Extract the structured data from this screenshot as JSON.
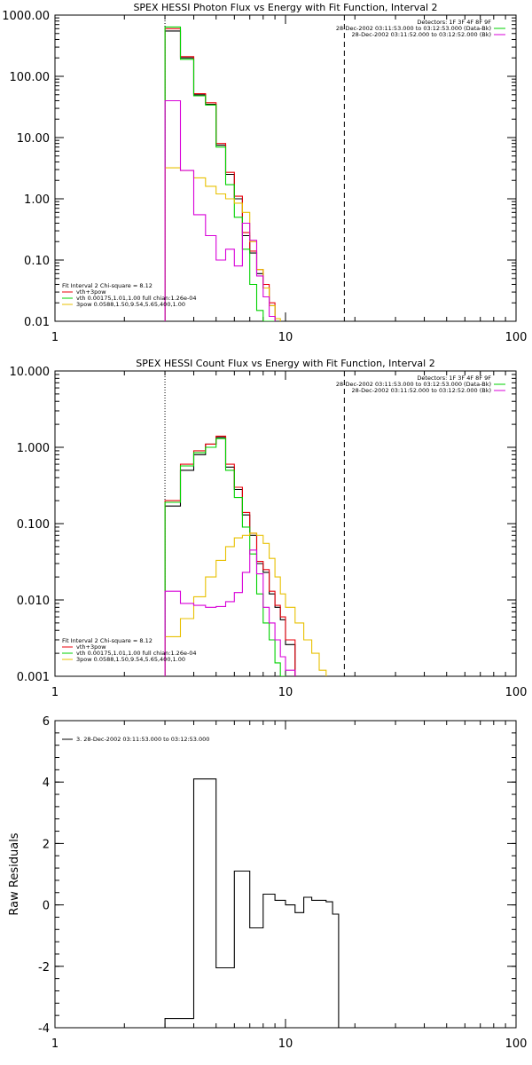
{
  "chart_data": [
    {
      "type": "line",
      "title": "SPEX HESSI Photon Flux vs Energy with Fit Function, Interval 2",
      "x_scale": "log",
      "y_scale": "log",
      "xlim": [
        1,
        100
      ],
      "ylim": [
        0.01,
        1000
      ],
      "x_ticks": [
        1,
        10,
        100
      ],
      "x_tick_labels": [
        "1",
        "10",
        "100"
      ],
      "y_ticks": [
        0.01,
        0.1,
        1,
        10,
        100,
        1000
      ],
      "y_tick_labels": [
        "0.01",
        "0.10",
        "1.00",
        "10.00",
        "100.00",
        "1000.00"
      ],
      "vlines": [
        {
          "x": 3.0,
          "style": "dotted"
        },
        {
          "x": 18.0,
          "style": "dashed"
        }
      ],
      "info_lines": [
        "Detectors: 1F 3F 4F 8F 9F",
        "28-Dec-2002 03:11:53.000 to 03:12:53.000 (Data-Bk)",
        "28-Dec-2002 03:11:52.000 to 03:12:52.000 (Bk)"
      ],
      "legend_title": "Fit Interval  2    Chi-square = 8.12",
      "legend": [
        {
          "label": "vth+3pow",
          "color": "#e8000b"
        },
        {
          "label": "vth 0.00175,1.01,1.00   full chian:1.26e-04",
          "color": "#00d200"
        },
        {
          "label": "3pow 0.0588,1.50,9.54,5.65,400,1.00",
          "color": "#e8c000"
        }
      ],
      "edges": [
        3.0,
        3.5,
        4.0,
        4.5,
        5.0,
        5.5,
        6.0,
        6.5,
        7.0,
        7.5,
        8.0,
        8.5,
        9.0,
        9.5,
        10.0,
        11.0,
        12.0,
        13.0,
        14.0,
        15.0,
        16.0,
        18.0,
        20.0,
        22.0
      ],
      "series": [
        {
          "key": "data",
          "color": "#000000",
          "values": [
            550,
            200,
            50,
            35,
            7.5,
            2.5,
            1.0,
            0.25,
            0.13,
            0.06,
            0.035,
            0.018
          ]
        },
        {
          "key": "model",
          "color": "#e8000b",
          "values": [
            600,
            210,
            52,
            37,
            8.0,
            2.7,
            1.1,
            0.28,
            0.14,
            0.07,
            0.04,
            0.02
          ]
        },
        {
          "key": "vth",
          "color": "#00d200",
          "values": [
            640,
            190,
            48,
            34,
            7.0,
            1.7,
            0.5,
            0.15,
            0.04,
            0.015,
            0.008,
            0.005
          ]
        },
        {
          "key": "3pow",
          "color": "#e8c000",
          "values": [
            3.2,
            2.9,
            2.2,
            1.6,
            1.2,
            1.0,
            0.85,
            0.6,
            0.2,
            0.07,
            0.035,
            0.018,
            0.011
          ]
        },
        {
          "key": "bk",
          "color": "#d800d8",
          "values": [
            40,
            2.9,
            0.55,
            0.25,
            0.1,
            0.15,
            0.08,
            0.4,
            0.21,
            0.055,
            0.025,
            0.012
          ]
        }
      ]
    },
    {
      "type": "line",
      "title": "SPEX HESSI Count Flux vs Energy with Fit Function, Interval 2",
      "x_scale": "log",
      "y_scale": "log",
      "xlim": [
        1,
        100
      ],
      "ylim": [
        0.001,
        10
      ],
      "x_ticks": [
        1,
        10,
        100
      ],
      "x_tick_labels": [
        "1",
        "10",
        "100"
      ],
      "y_ticks": [
        0.001,
        0.01,
        0.1,
        1,
        10
      ],
      "y_tick_labels": [
        "0.001",
        "0.010",
        "0.100",
        "1.000",
        "10.000"
      ],
      "vlines": [
        {
          "x": 3.0,
          "style": "dotted"
        },
        {
          "x": 18.0,
          "style": "dashed"
        }
      ],
      "info_lines": [
        "Detectors: 1F 3F 4F 8F 9F",
        "28-Dec-2002 03:11:53.000 to 03:12:53.000 (Data-Bk)",
        "28-Dec-2002 03:11:52.000 to 03:12:52.000 (Bk)"
      ],
      "legend_title": "Fit Interval  2    Chi-square = 8.12",
      "legend": [
        {
          "label": "vth+3pow",
          "color": "#e8000b"
        },
        {
          "label": "vth 0.00175,1.01,1.00   full chian:1.26e-04",
          "color": "#00d200"
        },
        {
          "label": "3pow 0.0588,1.50,9.54,5.65,400,1.00",
          "color": "#e8c000"
        }
      ],
      "edges": [
        3.0,
        3.5,
        4.0,
        4.5,
        5.0,
        5.5,
        6.0,
        6.5,
        7.0,
        7.5,
        8.0,
        8.5,
        9.0,
        9.5,
        10.0,
        11.0,
        12.0,
        13.0,
        14.0,
        15.0,
        16.0,
        18.0,
        20.0,
        22.0
      ],
      "series": [
        {
          "key": "data",
          "color": "#000000",
          "values": [
            0.17,
            0.5,
            0.8,
            1.1,
            1.35,
            0.55,
            0.28,
            0.13,
            0.07,
            0.03,
            0.023,
            0.012,
            0.008,
            0.0055,
            0.0026
          ]
        },
        {
          "key": "model",
          "color": "#e8000b",
          "values": [
            0.2,
            0.6,
            0.9,
            1.1,
            1.4,
            0.6,
            0.3,
            0.14,
            0.075,
            0.032,
            0.025,
            0.013,
            0.0085,
            0.006,
            0.003
          ]
        },
        {
          "key": "vth",
          "color": "#00d200",
          "values": [
            0.19,
            0.57,
            0.85,
            1.0,
            1.3,
            0.5,
            0.22,
            0.09,
            0.04,
            0.012,
            0.005,
            0.003,
            0.0015,
            0.0008
          ]
        },
        {
          "key": "3pow",
          "color": "#e8c000",
          "values": [
            0.0033,
            0.0057,
            0.011,
            0.02,
            0.033,
            0.05,
            0.065,
            0.07,
            0.075,
            0.07,
            0.055,
            0.035,
            0.02,
            0.012,
            0.008,
            0.005,
            0.003,
            0.002,
            0.0012
          ]
        },
        {
          "key": "bk",
          "color": "#d800d8",
          "values": [
            0.013,
            0.009,
            0.0085,
            0.008,
            0.0082,
            0.0095,
            0.0125,
            0.023,
            0.045,
            0.022,
            0.008,
            0.005,
            0.003,
            0.0018,
            0.0012
          ]
        }
      ]
    },
    {
      "type": "line",
      "title": "",
      "ylabel": "Raw Residuals",
      "x_scale": "log",
      "y_scale": "linear",
      "xlim": [
        1,
        100
      ],
      "ylim": [
        -4,
        6
      ],
      "x_ticks": [
        1,
        10,
        100
      ],
      "x_tick_labels": [
        "1",
        "10",
        "100"
      ],
      "y_ticks": [
        -4,
        -2,
        0,
        2,
        4,
        6
      ],
      "y_tick_labels": [
        "-4",
        "-2",
        "0",
        "2",
        "4",
        "6"
      ],
      "legend": [
        {
          "label": "3. 28-Dec-2002 03:11:53.000 to 03:12:53.000",
          "color": "#000000"
        }
      ],
      "edges": [
        3.0,
        4.0,
        5.0,
        6.0,
        7.0,
        8.0,
        9.0,
        10.0,
        11.0,
        12.0,
        13.0,
        14.0,
        15.0,
        16.0,
        17.0,
        18.0
      ],
      "series": [
        {
          "key": "residuals",
          "color": "#000000",
          "values": [
            -3.7,
            4.1,
            -2.05,
            1.1,
            -0.75,
            0.35,
            0.15,
            0.0,
            -0.25,
            0.25,
            0.15,
            0.15,
            0.1,
            -0.3,
            -4.0
          ]
        }
      ]
    }
  ]
}
